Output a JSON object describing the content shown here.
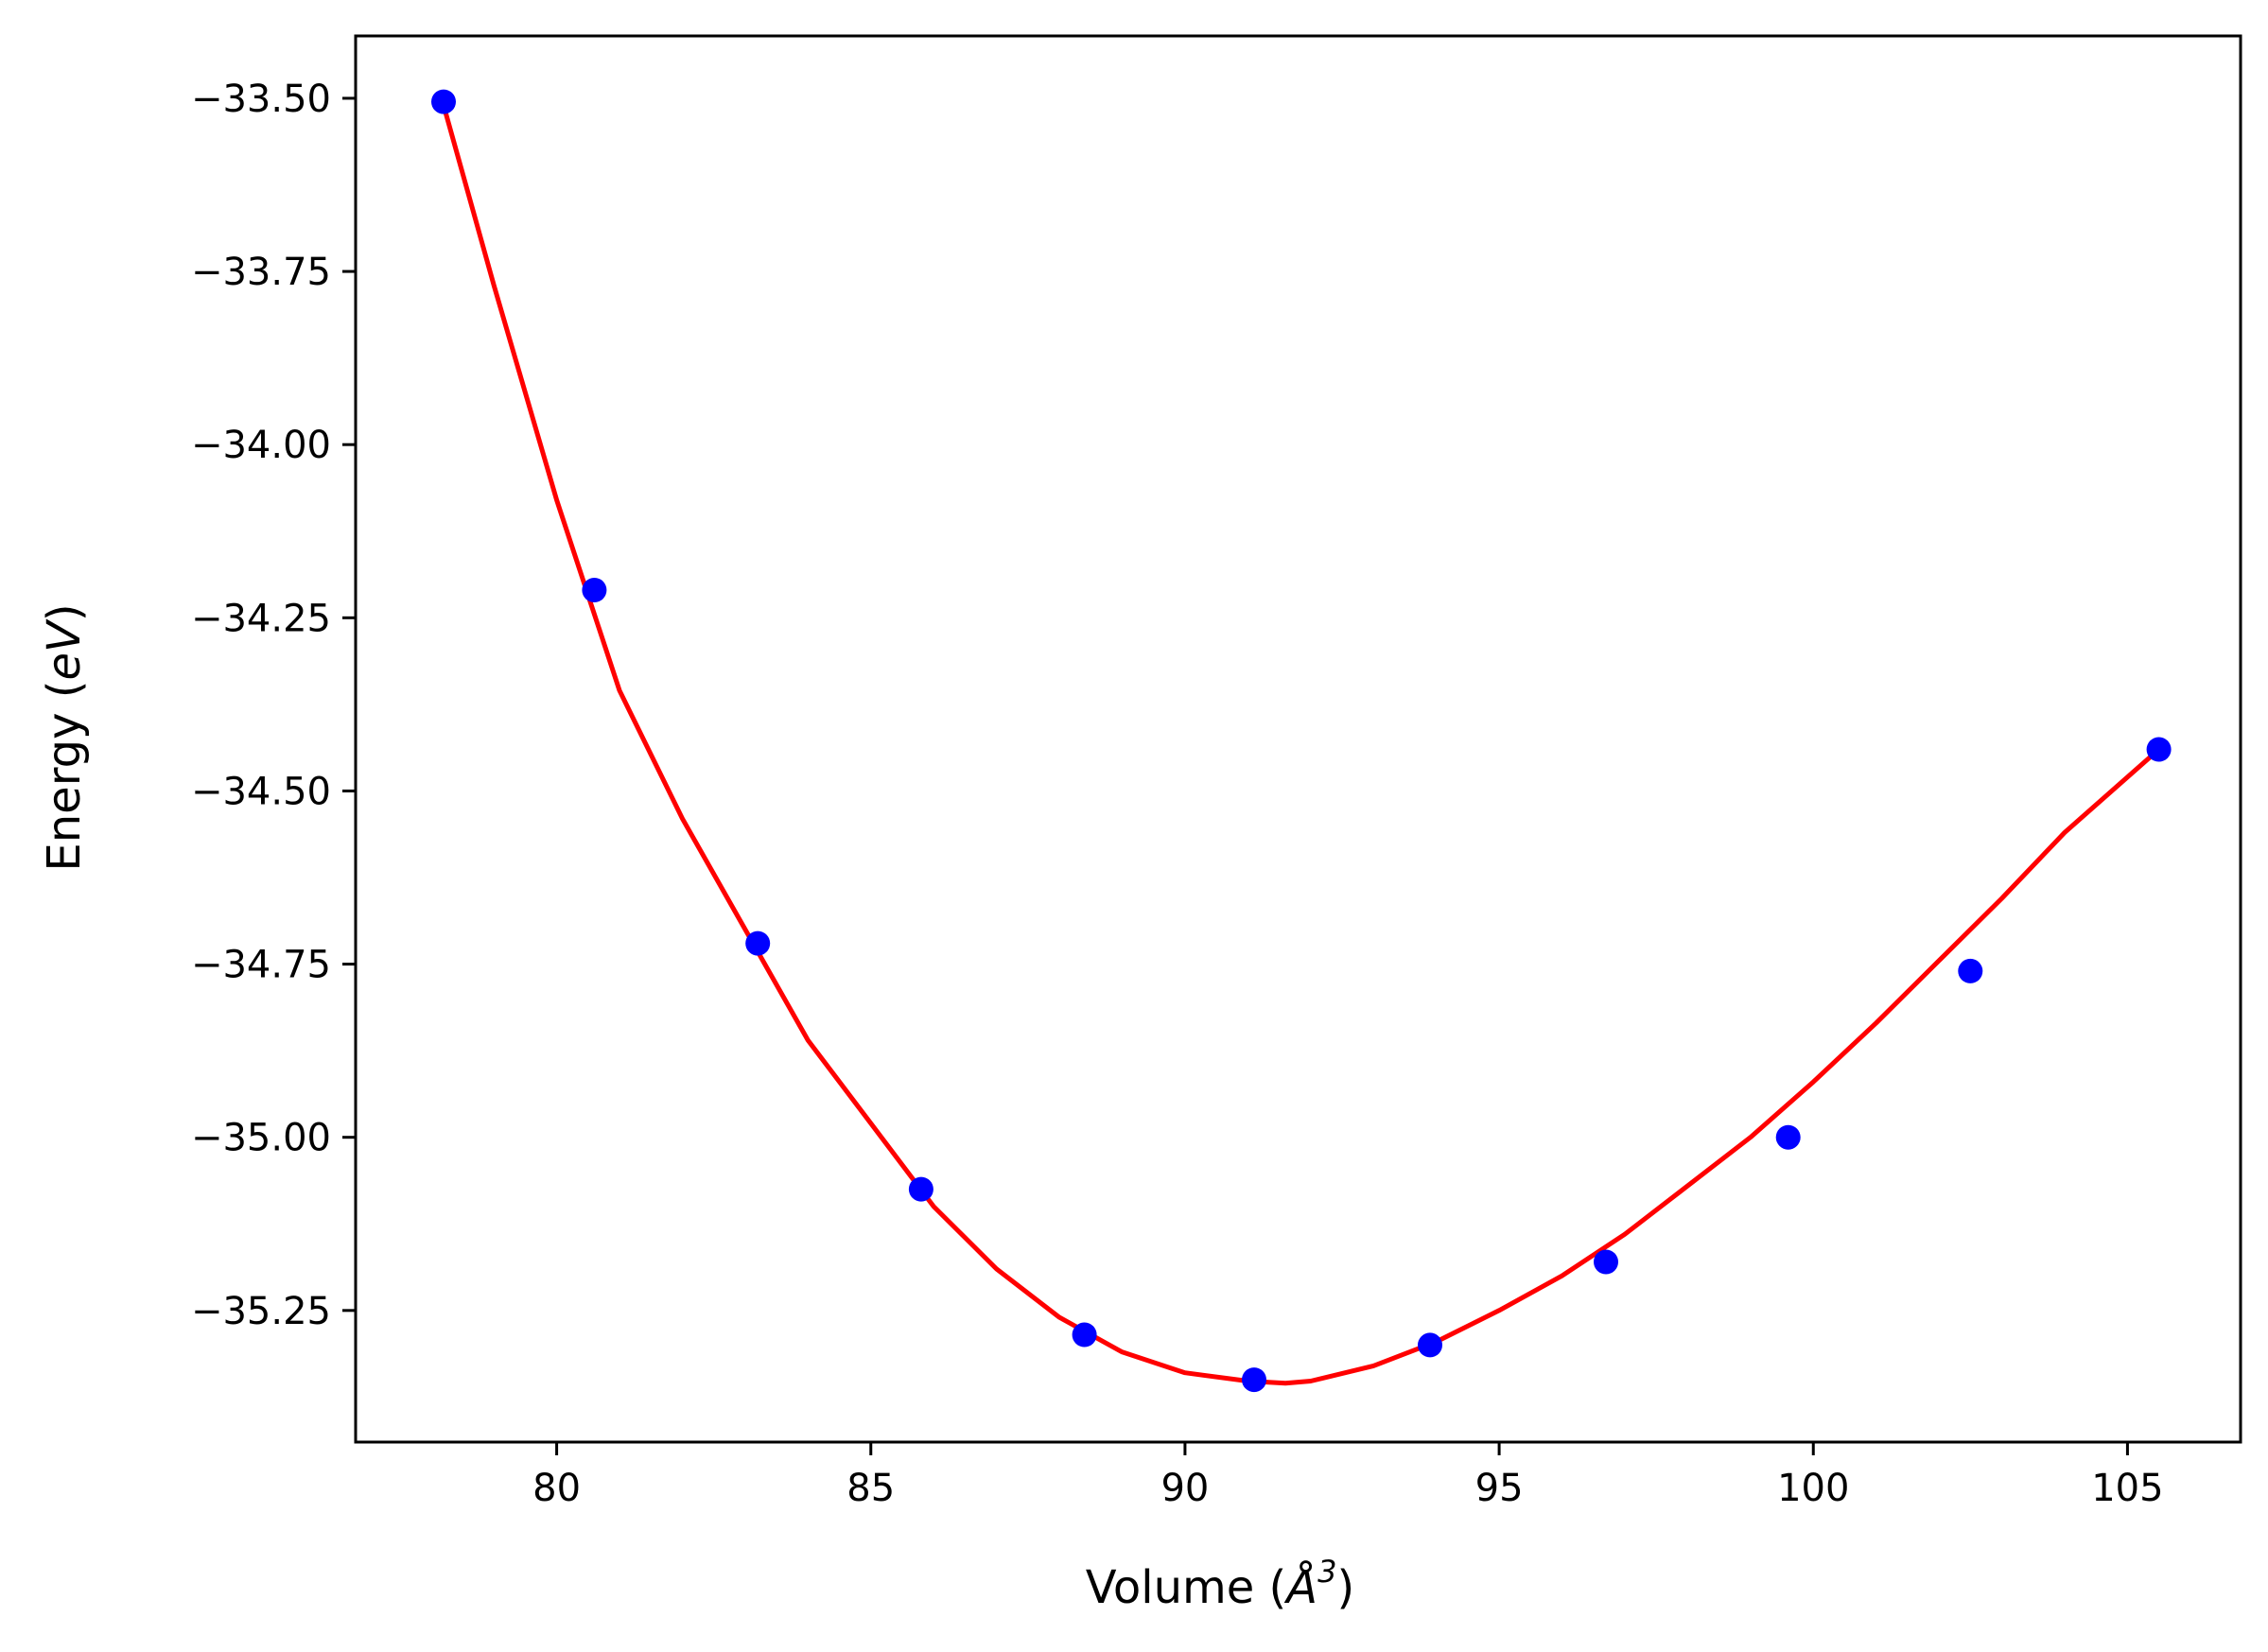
{
  "chart_data": {
    "type": "scatter",
    "title": "",
    "xlabel": {
      "prefix": "Volume (",
      "unit_letter": "Å",
      "exponent": "3",
      "suffix": ")"
    },
    "ylabel": {
      "prefix": "Energy (",
      "unit": "eV",
      "suffix": ")"
    },
    "xlim": [
      76.8,
      106.8
    ],
    "ylim": [
      -35.44,
      -33.41
    ],
    "xticks": [
      80,
      85,
      90,
      95,
      100,
      105
    ],
    "xtick_labels": [
      "80",
      "85",
      "90",
      "95",
      "100",
      "105"
    ],
    "yticks": [
      -33.5,
      -33.75,
      -34.0,
      -34.25,
      -34.5,
      -34.75,
      -35.0,
      -35.25
    ],
    "ytick_labels": [
      "−33.50",
      "−33.75",
      "−34.00",
      "−34.25",
      "−34.50",
      "−34.75",
      "−35.00",
      "−35.25"
    ],
    "grid": false,
    "series": [
      {
        "kind": "points",
        "color": "#0000ff",
        "x": [
          78.2,
          80.6,
          83.2,
          85.8,
          88.4,
          91.1,
          93.9,
          96.7,
          99.6,
          102.5,
          105.5
        ],
        "y": [
          -33.505,
          -34.21,
          -34.72,
          -35.075,
          -35.285,
          -35.35,
          -35.3,
          -35.18,
          -35.0,
          -34.76,
          -34.44
        ]
      },
      {
        "kind": "fit-curve",
        "color": "#ff0000",
        "x": [
          78.2,
          79.0,
          80.0,
          81.0,
          82.0,
          83.0,
          84.0,
          85.0,
          86.0,
          87.0,
          88.0,
          89.0,
          90.0,
          91.0,
          91.6,
          92.0,
          93.0,
          94.0,
          95.0,
          96.0,
          97.0,
          98.0,
          99.0,
          100.0,
          101.0,
          102.0,
          103.0,
          104.0,
          105.5
        ],
        "y": [
          -33.51,
          -33.77,
          -34.08,
          -34.355,
          -34.54,
          -34.7,
          -34.86,
          -34.98,
          -35.1,
          -35.19,
          -35.26,
          -35.31,
          -35.34,
          -35.352,
          -35.355,
          -35.352,
          -35.33,
          -35.295,
          -35.25,
          -35.2,
          -35.14,
          -35.07,
          -35.0,
          -34.92,
          -34.835,
          -34.745,
          -34.655,
          -34.56,
          -34.44
        ]
      }
    ]
  }
}
